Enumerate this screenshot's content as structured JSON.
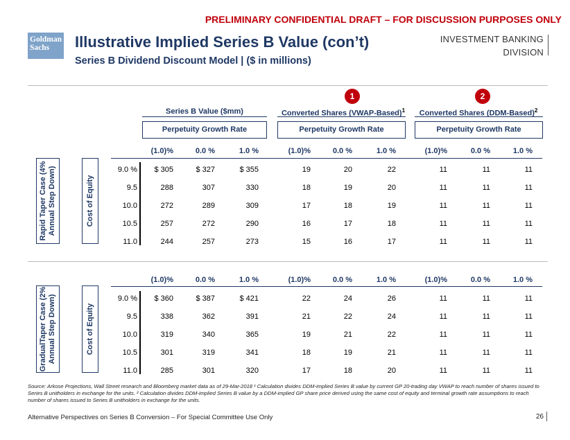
{
  "banner": "PRELIMINARY CONFIDENTIAL DRAFT – FOR DISCUSSION PURPOSES ONLY",
  "logo": {
    "line1": "Goldman",
    "line2": "Sachs"
  },
  "title": "Illustrative Implied Series B Value (con’t)",
  "subtitle": "Series B Dividend Discount Model | ($ in millions)",
  "division": {
    "line1": "INVESTMENT BANKING",
    "line2": "DIVISION"
  },
  "markers": {
    "one": "1",
    "two": "2"
  },
  "groups": [
    {
      "title": "Series B Value ($mm)",
      "sup": ""
    },
    {
      "title": "Converted Shares (VWAP-Based)",
      "sup": "1"
    },
    {
      "title": "Converted Shares (DDM-Based)",
      "sup": "2"
    }
  ],
  "pgr_label": "Perpetuity Growth Rate",
  "growth_headers": [
    "(1.0)%",
    "0.0 %",
    "1.0 %"
  ],
  "coe_label": "Cost of Equity",
  "sections": [
    {
      "case_label_line1": "Rapid Taper Case (4%",
      "case_label_line2": "Annual Step Down)",
      "rows": [
        {
          "coe": "9.0 %",
          "values": [
            "$ 305",
            "$ 327",
            "$ 355",
            "19",
            "20",
            "22",
            "11",
            "11",
            "11"
          ]
        },
        {
          "coe": "9.5",
          "values": [
            "288",
            "307",
            "330",
            "18",
            "19",
            "20",
            "11",
            "11",
            "11"
          ]
        },
        {
          "coe": "10.0",
          "values": [
            "272",
            "289",
            "309",
            "17",
            "18",
            "19",
            "11",
            "11",
            "11"
          ]
        },
        {
          "coe": "10.5",
          "values": [
            "257",
            "272",
            "290",
            "16",
            "17",
            "18",
            "11",
            "11",
            "11"
          ]
        },
        {
          "coe": "11.0",
          "values": [
            "244",
            "257",
            "273",
            "15",
            "16",
            "17",
            "11",
            "11",
            "11"
          ]
        }
      ]
    },
    {
      "case_label_line1": "GradualTaper Case (2%",
      "case_label_line2": "Annual Step Down)",
      "rows": [
        {
          "coe": "9.0 %",
          "values": [
            "$ 360",
            "$ 387",
            "$ 421",
            "22",
            "24",
            "26",
            "11",
            "11",
            "11"
          ]
        },
        {
          "coe": "9.5",
          "values": [
            "338",
            "362",
            "391",
            "21",
            "22",
            "24",
            "11",
            "11",
            "11"
          ]
        },
        {
          "coe": "10.0",
          "values": [
            "319",
            "340",
            "365",
            "19",
            "21",
            "22",
            "11",
            "11",
            "11"
          ]
        },
        {
          "coe": "10.5",
          "values": [
            "301",
            "319",
            "341",
            "18",
            "19",
            "21",
            "11",
            "11",
            "11"
          ]
        },
        {
          "coe": "11.0",
          "values": [
            "285",
            "301",
            "320",
            "17",
            "18",
            "20",
            "11",
            "11",
            "11"
          ]
        }
      ]
    }
  ],
  "source": "Source: Arkose Projections, Wall Street research and Bloomberg market data as of 29-Mar-2018  ¹ Calculation divides DDM-implied Series B value by current GP 20-trading day VWAP to reach number of shares issued to Series B unitholders in exchange for the units. ² Calculation divides DDM-implied Series B value by a DDM-implied GP share price derived using the same cost of equity and terminal growth rate assumptions to reach number of shares issued to Series B unitholders in exchange for the units.",
  "footer": "Alternative Perspectives on Series B Conversion – For Special Committee Use Only",
  "page_number": "26"
}
